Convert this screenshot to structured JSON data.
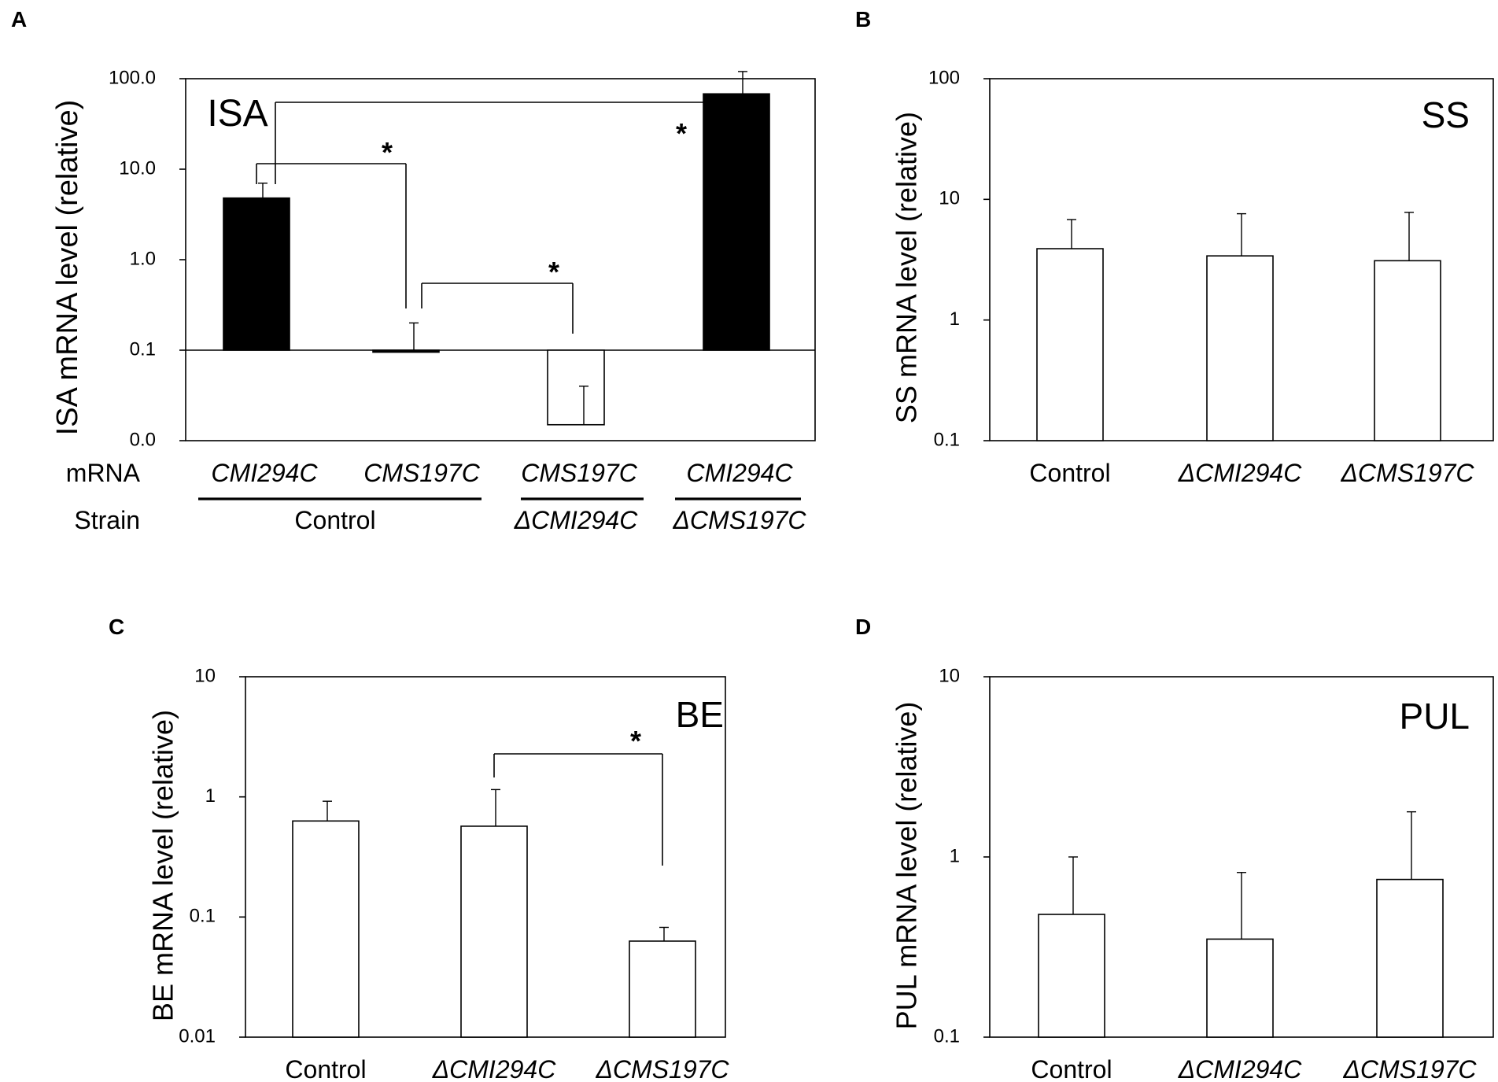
{
  "chart_data": [
    {
      "panel": "A",
      "type": "bar",
      "scale": "log",
      "title": "ISA",
      "ylabel": "ISA mRNA level (relative)",
      "ylim": [
        0.01,
        100
      ],
      "baseline": 0.1,
      "ytick_values": [
        0.01,
        0.1,
        1,
        10,
        100
      ],
      "ytick_labels": [
        "0.0",
        "0.1",
        "1.0",
        "10.0",
        "100.0"
      ],
      "row_labels": {
        "mrna": "mRNA",
        "strain": "Strain"
      },
      "groups": [
        {
          "label": "Control",
          "labels": [
            "CMI294C",
            "CMS197C"
          ]
        },
        {
          "label": "ΔCMI294C",
          "labels": [
            "CMS197C"
          ]
        },
        {
          "label": "ΔCMS197C",
          "labels": [
            "CMI294C"
          ]
        }
      ],
      "bars": [
        {
          "mrna": "CMI294C",
          "strain": "Control",
          "value": 4.8,
          "error_top": 7.0,
          "fill": "#000000"
        },
        {
          "mrna": "CMS197C",
          "strain": "Control",
          "value": 0.095,
          "error_top": 0.2,
          "fill": "#000000"
        },
        {
          "mrna": "CMS197C",
          "strain": "ΔCMI294C",
          "value": 0.015,
          "error_top": 0.04,
          "fill": "#ffffff"
        },
        {
          "mrna": "CMI294C",
          "strain": "ΔCMS197C",
          "value": 68,
          "error_top": 120,
          "fill": "#000000"
        }
      ],
      "significance": [
        {
          "from": 0,
          "to": 1,
          "label": "*"
        },
        {
          "from": 1,
          "to": 2,
          "label": "*"
        },
        {
          "from": 0,
          "to": 3,
          "label": "*"
        }
      ]
    },
    {
      "panel": "B",
      "type": "bar",
      "scale": "log",
      "title": "SS",
      "ylabel": "SS mRNA level (relative)",
      "ylim": [
        0.1,
        100
      ],
      "ytick_values": [
        0.1,
        1,
        10,
        100
      ],
      "ytick_labels": [
        "0.1",
        "1",
        "10",
        "100"
      ],
      "categories": [
        "Control",
        "ΔCMI294C",
        "ΔCMS197C"
      ],
      "values": [
        3.9,
        3.4,
        3.1
      ],
      "error_top": [
        6.8,
        7.6,
        7.8
      ],
      "significance": []
    },
    {
      "panel": "C",
      "type": "bar",
      "scale": "log",
      "title": "BE",
      "ylabel": "BE mRNA level (relative)",
      "ylim": [
        0.01,
        10
      ],
      "ytick_values": [
        0.01,
        0.1,
        1,
        10
      ],
      "ytick_labels": [
        "0.01",
        "0.1",
        "1",
        "10"
      ],
      "categories": [
        "Control",
        "ΔCMI294C",
        "ΔCMS197C"
      ],
      "values": [
        0.63,
        0.57,
        0.063
      ],
      "error_top": [
        0.92,
        1.15,
        0.082
      ],
      "significance": [
        {
          "from": 1,
          "to": 2,
          "label": "*"
        }
      ]
    },
    {
      "panel": "D",
      "type": "bar",
      "scale": "log",
      "title": "PUL",
      "ylabel": "PUL mRNA level (relative)",
      "ylim": [
        0.1,
        10
      ],
      "ytick_values": [
        0.1,
        1,
        10
      ],
      "ytick_labels": [
        "0.1",
        "1",
        "10"
      ],
      "categories": [
        "Control",
        "ΔCMI294C",
        "ΔCMS197C"
      ],
      "values": [
        0.48,
        0.35,
        0.75
      ],
      "error_top": [
        1.0,
        0.82,
        1.78
      ],
      "significance": []
    }
  ]
}
